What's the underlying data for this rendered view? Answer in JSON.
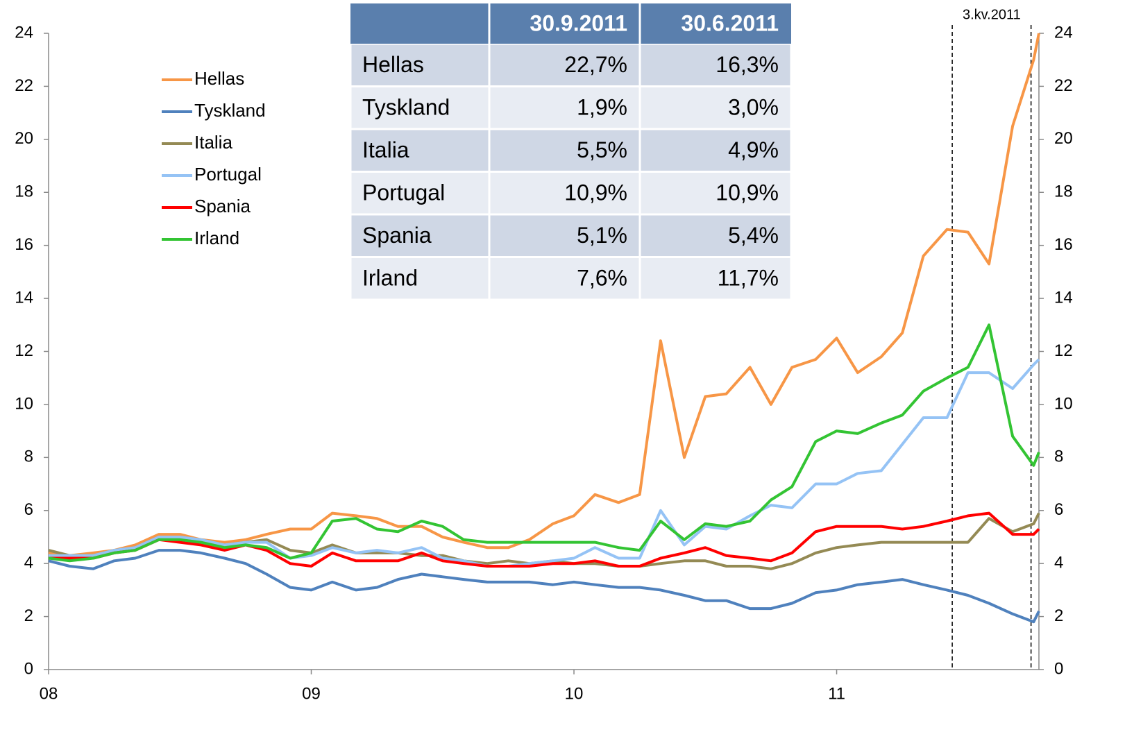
{
  "chart_data": {
    "type": "line",
    "x": [
      2008.0,
      2008.08,
      2008.17,
      2008.25,
      2008.33,
      2008.42,
      2008.5,
      2008.58,
      2008.67,
      2008.75,
      2008.83,
      2008.92,
      2009.0,
      2009.08,
      2009.17,
      2009.25,
      2009.33,
      2009.42,
      2009.5,
      2009.58,
      2009.67,
      2009.75,
      2009.83,
      2009.92,
      2010.0,
      2010.08,
      2010.17,
      2010.25,
      2010.33,
      2010.42,
      2010.5,
      2010.58,
      2010.67,
      2010.75,
      2010.83,
      2010.92,
      2011.0,
      2011.08,
      2011.17,
      2011.25,
      2011.33,
      2011.42,
      2011.5,
      2011.58,
      2011.67,
      2011.75,
      2011.77
    ],
    "series": [
      {
        "name": "Hellas",
        "color": "#f79646",
        "values": [
          4.4,
          4.3,
          4.4,
          4.5,
          4.7,
          5.1,
          5.1,
          4.9,
          4.8,
          4.9,
          5.1,
          5.3,
          5.3,
          5.9,
          5.8,
          5.7,
          5.4,
          5.4,
          5.0,
          4.8,
          4.6,
          4.6,
          4.9,
          5.5,
          5.8,
          6.6,
          6.3,
          6.6,
          12.4,
          8.0,
          10.3,
          10.4,
          11.4,
          10.0,
          11.4,
          11.7,
          12.5,
          11.2,
          11.8,
          12.7,
          15.6,
          16.6,
          16.5,
          15.3,
          20.5,
          23.0,
          24.0
        ]
      },
      {
        "name": "Tyskland",
        "color": "#4f81bd",
        "values": [
          4.1,
          3.9,
          3.8,
          4.1,
          4.2,
          4.5,
          4.5,
          4.4,
          4.2,
          4.0,
          3.6,
          3.1,
          3.0,
          3.3,
          3.0,
          3.1,
          3.4,
          3.6,
          3.5,
          3.4,
          3.3,
          3.3,
          3.3,
          3.2,
          3.3,
          3.2,
          3.1,
          3.1,
          3.0,
          2.8,
          2.6,
          2.6,
          2.3,
          2.3,
          2.5,
          2.9,
          3.0,
          3.2,
          3.3,
          3.4,
          3.2,
          3.0,
          2.8,
          2.5,
          2.1,
          1.8,
          2.2
        ]
      },
      {
        "name": "Italia",
        "color": "#948a54",
        "values": [
          4.5,
          4.3,
          4.3,
          4.5,
          4.6,
          5.0,
          5.0,
          4.9,
          4.7,
          4.8,
          4.9,
          4.5,
          4.4,
          4.7,
          4.4,
          4.4,
          4.4,
          4.3,
          4.3,
          4.1,
          4.0,
          4.1,
          4.0,
          4.1,
          4.0,
          4.0,
          3.9,
          3.9,
          4.0,
          4.1,
          4.1,
          3.9,
          3.9,
          3.8,
          4.0,
          4.4,
          4.6,
          4.7,
          4.8,
          4.8,
          4.8,
          4.8,
          4.8,
          5.7,
          5.2,
          5.5,
          5.9
        ]
      },
      {
        "name": "Portugal",
        "color": "#95c3f5",
        "values": [
          4.3,
          4.3,
          4.3,
          4.5,
          4.6,
          5.0,
          5.0,
          4.9,
          4.7,
          4.8,
          4.8,
          4.2,
          4.3,
          4.6,
          4.4,
          4.5,
          4.4,
          4.6,
          4.2,
          4.1,
          3.9,
          3.9,
          4.0,
          4.1,
          4.2,
          4.6,
          4.2,
          4.2,
          6.0,
          4.7,
          5.4,
          5.3,
          5.8,
          6.2,
          6.1,
          7.0,
          7.0,
          7.4,
          7.5,
          8.5,
          9.5,
          9.5,
          11.2,
          11.2,
          10.6,
          11.5,
          11.7
        ]
      },
      {
        "name": "Spania",
        "color": "#ff0000",
        "values": [
          4.2,
          4.2,
          4.2,
          4.4,
          4.5,
          4.9,
          4.8,
          4.7,
          4.5,
          4.7,
          4.5,
          4.0,
          3.9,
          4.4,
          4.1,
          4.1,
          4.1,
          4.4,
          4.1,
          4.0,
          3.9,
          3.9,
          3.9,
          4.0,
          4.0,
          4.1,
          3.9,
          3.9,
          4.2,
          4.4,
          4.6,
          4.3,
          4.2,
          4.1,
          4.4,
          5.2,
          5.4,
          5.4,
          5.4,
          5.3,
          5.4,
          5.6,
          5.8,
          5.9,
          5.1,
          5.1,
          5.3
        ]
      },
      {
        "name": "Irland",
        "color": "#33c433",
        "values": [
          4.2,
          4.1,
          4.2,
          4.4,
          4.5,
          4.9,
          4.9,
          4.8,
          4.6,
          4.7,
          4.6,
          4.2,
          4.4,
          5.6,
          5.7,
          5.3,
          5.2,
          5.6,
          5.4,
          4.9,
          4.8,
          4.8,
          4.8,
          4.8,
          4.8,
          4.8,
          4.6,
          4.5,
          5.6,
          4.9,
          5.5,
          5.4,
          5.6,
          6.4,
          6.9,
          8.6,
          9.0,
          8.9,
          9.3,
          9.6,
          10.5,
          11.0,
          11.4,
          13.0,
          8.8,
          7.7,
          8.2
        ]
      }
    ],
    "xlim": [
      2008,
      2011.77
    ],
    "xticks": [
      {
        "value": 2008,
        "label": "08"
      },
      {
        "value": 2009,
        "label": "09"
      },
      {
        "value": 2010,
        "label": "10"
      },
      {
        "value": 2011,
        "label": "11"
      }
    ],
    "ylim": [
      0,
      24
    ],
    "yticks": [
      0,
      2,
      4,
      6,
      8,
      10,
      12,
      14,
      16,
      18,
      20,
      22,
      24
    ],
    "y2lim": [
      0,
      24
    ],
    "y2ticks": [
      0,
      2,
      4,
      6,
      8,
      10,
      12,
      14,
      16,
      18,
      20,
      22,
      24
    ],
    "grid": false,
    "legend": "upper left",
    "vlines": [
      2011.44,
      2011.74
    ],
    "annotation": "3.kv.2011",
    "table": {
      "headers": [
        "30.9.2011",
        "30.6.2011"
      ],
      "rows": [
        [
          "Hellas",
          "22,7%",
          "16,3%"
        ],
        [
          "Tyskland",
          "1,9%",
          "3,0%"
        ],
        [
          "Italia",
          "5,5%",
          "4,9%"
        ],
        [
          "Portugal",
          "10,9%",
          "10,9%"
        ],
        [
          "Spania",
          "5,1%",
          "5,4%"
        ],
        [
          "Irland",
          "7,6%",
          "11,7%"
        ]
      ]
    }
  }
}
